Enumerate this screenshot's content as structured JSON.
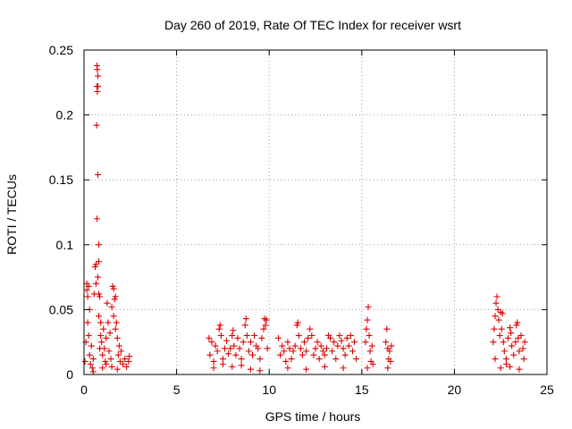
{
  "chart_data": {
    "type": "scatter",
    "title": "Day 260 of 2019, Rate Of TEC Index for receiver wsrt",
    "xlabel": "GPS time / hours",
    "ylabel": "ROTI / TECUs",
    "xlim": [
      0,
      25
    ],
    "ylim": [
      0,
      0.25
    ],
    "xticks": [
      0,
      5,
      10,
      15,
      20,
      25
    ],
    "yticks": [
      0,
      0.05,
      0.1,
      0.15,
      0.2,
      0.25
    ],
    "xtick_labels": [
      "0",
      "5",
      "10",
      "15",
      "20",
      "25"
    ],
    "ytick_labels": [
      "0",
      "0.05",
      "0.1",
      "0.15",
      "0.2",
      "0.25"
    ],
    "grid": true,
    "marker": "+",
    "color": "#e00000",
    "series": [
      {
        "points": [
          [
            0.05,
            0.01
          ],
          [
            0.1,
            0.025
          ],
          [
            0.15,
            0.065
          ],
          [
            0.15,
            0.07
          ],
          [
            0.2,
            0.04
          ],
          [
            0.2,
            0.06
          ],
          [
            0.25,
            0.068
          ],
          [
            0.25,
            0.03
          ],
          [
            0.3,
            0.05
          ],
          [
            0.3,
            0.015
          ],
          [
            0.35,
            0.008
          ],
          [
            0.4,
            0.022
          ],
          [
            0.45,
            0.005
          ],
          [
            0.5,
            0.012
          ],
          [
            0.55,
            0.062
          ],
          [
            0.6,
            0.083
          ],
          [
            0.65,
            0.085
          ],
          [
            0.65,
            0.07
          ],
          [
            0.7,
            0.238
          ],
          [
            0.72,
            0.235
          ],
          [
            0.75,
            0.23
          ],
          [
            0.7,
            0.222
          ],
          [
            0.75,
            0.222
          ],
          [
            0.72,
            0.218
          ],
          [
            0.68,
            0.192
          ],
          [
            0.75,
            0.154
          ],
          [
            0.7,
            0.12
          ],
          [
            0.8,
            0.1
          ],
          [
            0.8,
            0.087
          ],
          [
            0.75,
            0.075
          ],
          [
            0.8,
            0.062
          ],
          [
            0.85,
            0.06
          ],
          [
            0.8,
            0.045
          ],
          [
            0.9,
            0.04
          ],
          [
            0.9,
            0.03
          ],
          [
            0.85,
            0.02
          ],
          [
            0.95,
            0.025
          ],
          [
            1.0,
            0.015
          ],
          [
            1.05,
            0.035
          ],
          [
            1.1,
            0.02
          ],
          [
            1.15,
            0.01
          ],
          [
            1.2,
            0.028
          ],
          [
            1.25,
            0.055
          ],
          [
            1.3,
            0.04
          ],
          [
            1.35,
            0.018
          ],
          [
            1.4,
            0.032
          ],
          [
            1.45,
            0.012
          ],
          [
            1.5,
            0.052
          ],
          [
            1.55,
            0.068
          ],
          [
            1.6,
            0.066
          ],
          [
            1.6,
            0.045
          ],
          [
            1.65,
            0.058
          ],
          [
            1.7,
            0.06
          ],
          [
            1.7,
            0.035
          ],
          [
            1.75,
            0.04
          ],
          [
            1.8,
            0.028
          ],
          [
            1.85,
            0.015
          ],
          [
            1.9,
            0.022
          ],
          [
            1.95,
            0.01
          ],
          [
            2.0,
            0.018
          ],
          [
            2.1,
            0.008
          ],
          [
            2.2,
            0.012
          ],
          [
            2.3,
            0.006
          ],
          [
            2.4,
            0.01
          ],
          [
            2.45,
            0.014
          ],
          [
            1.0,
            0.005
          ],
          [
            1.5,
            0.006
          ],
          [
            0.5,
            0.002
          ],
          [
            1.2,
            0.008
          ],
          [
            1.8,
            0.004
          ],
          [
            6.75,
            0.028
          ],
          [
            6.8,
            0.015
          ],
          [
            6.9,
            0.025
          ],
          [
            7.0,
            0.01
          ],
          [
            7.1,
            0.022
          ],
          [
            7.2,
            0.018
          ],
          [
            7.3,
            0.035
          ],
          [
            7.35,
            0.038
          ],
          [
            7.4,
            0.03
          ],
          [
            7.5,
            0.012
          ],
          [
            7.6,
            0.02
          ],
          [
            7.7,
            0.026
          ],
          [
            7.8,
            0.016
          ],
          [
            7.9,
            0.02
          ],
          [
            8.0,
            0.03
          ],
          [
            8.05,
            0.034
          ],
          [
            8.1,
            0.022
          ],
          [
            8.2,
            0.015
          ],
          [
            8.3,
            0.028
          ],
          [
            8.4,
            0.02
          ],
          [
            8.5,
            0.012
          ],
          [
            8.6,
            0.025
          ],
          [
            8.7,
            0.038
          ],
          [
            8.75,
            0.043
          ],
          [
            8.8,
            0.03
          ],
          [
            8.9,
            0.018
          ],
          [
            9.0,
            0.025
          ],
          [
            9.1,
            0.015
          ],
          [
            9.2,
            0.03
          ],
          [
            9.3,
            0.022
          ],
          [
            9.4,
            0.02
          ],
          [
            9.5,
            0.012
          ],
          [
            9.6,
            0.028
          ],
          [
            9.7,
            0.035
          ],
          [
            9.75,
            0.043
          ],
          [
            9.8,
            0.038
          ],
          [
            9.85,
            0.042
          ],
          [
            9.9,
            0.02
          ],
          [
            7.0,
            0.005
          ],
          [
            8.0,
            0.006
          ],
          [
            9.0,
            0.004
          ],
          [
            7.5,
            0.008
          ],
          [
            8.5,
            0.007
          ],
          [
            9.5,
            0.003
          ],
          [
            10.5,
            0.028
          ],
          [
            10.6,
            0.015
          ],
          [
            10.7,
            0.022
          ],
          [
            10.8,
            0.018
          ],
          [
            10.9,
            0.01
          ],
          [
            11.0,
            0.025
          ],
          [
            11.1,
            0.02
          ],
          [
            11.2,
            0.012
          ],
          [
            11.3,
            0.018
          ],
          [
            11.4,
            0.022
          ],
          [
            11.5,
            0.038
          ],
          [
            11.55,
            0.04
          ],
          [
            11.6,
            0.03
          ],
          [
            11.7,
            0.02
          ],
          [
            11.8,
            0.015
          ],
          [
            11.9,
            0.025
          ],
          [
            12.0,
            0.018
          ],
          [
            12.1,
            0.028
          ],
          [
            12.2,
            0.035
          ],
          [
            12.3,
            0.03
          ],
          [
            12.4,
            0.015
          ],
          [
            12.5,
            0.02
          ],
          [
            12.6,
            0.025
          ],
          [
            12.7,
            0.012
          ],
          [
            12.8,
            0.022
          ],
          [
            12.9,
            0.018
          ],
          [
            13.0,
            0.015
          ],
          [
            13.1,
            0.02
          ],
          [
            13.2,
            0.03
          ],
          [
            13.3,
            0.028
          ],
          [
            13.4,
            0.018
          ],
          [
            13.5,
            0.025
          ],
          [
            13.6,
            0.012
          ],
          [
            13.7,
            0.022
          ],
          [
            13.8,
            0.03
          ],
          [
            13.9,
            0.026
          ],
          [
            14.0,
            0.02
          ],
          [
            14.1,
            0.015
          ],
          [
            14.2,
            0.028
          ],
          [
            14.3,
            0.022
          ],
          [
            14.4,
            0.03
          ],
          [
            14.5,
            0.018
          ],
          [
            14.6,
            0.025
          ],
          [
            14.7,
            0.012
          ],
          [
            11.0,
            0.005
          ],
          [
            12.0,
            0.004
          ],
          [
            13.0,
            0.006
          ],
          [
            14.0,
            0.005
          ],
          [
            15.2,
            0.025
          ],
          [
            15.25,
            0.035
          ],
          [
            15.3,
            0.042
          ],
          [
            15.35,
            0.052
          ],
          [
            15.4,
            0.03
          ],
          [
            15.45,
            0.018
          ],
          [
            15.5,
            0.01
          ],
          [
            15.55,
            0.022
          ],
          [
            15.6,
            0.008
          ],
          [
            15.3,
            0.005
          ],
          [
            16.3,
            0.025
          ],
          [
            16.35,
            0.035
          ],
          [
            16.4,
            0.02
          ],
          [
            16.45,
            0.012
          ],
          [
            16.5,
            0.018
          ],
          [
            16.55,
            0.01
          ],
          [
            16.6,
            0.022
          ],
          [
            16.4,
            0.005
          ],
          [
            22.1,
            0.025
          ],
          [
            22.15,
            0.035
          ],
          [
            22.2,
            0.045
          ],
          [
            22.25,
            0.055
          ],
          [
            22.3,
            0.06
          ],
          [
            22.35,
            0.05
          ],
          [
            22.4,
            0.042
          ],
          [
            22.45,
            0.03
          ],
          [
            22.5,
            0.048
          ],
          [
            22.55,
            0.035
          ],
          [
            22.6,
            0.047
          ],
          [
            22.65,
            0.025
          ],
          [
            22.7,
            0.018
          ],
          [
            22.8,
            0.012
          ],
          [
            22.9,
            0.028
          ],
          [
            23.0,
            0.036
          ],
          [
            23.05,
            0.032
          ],
          [
            23.1,
            0.022
          ],
          [
            23.2,
            0.015
          ],
          [
            23.3,
            0.025
          ],
          [
            23.35,
            0.038
          ],
          [
            23.4,
            0.04
          ],
          [
            23.45,
            0.028
          ],
          [
            23.5,
            0.018
          ],
          [
            23.6,
            0.03
          ],
          [
            23.7,
            0.02
          ],
          [
            23.75,
            0.012
          ],
          [
            23.8,
            0.025
          ],
          [
            22.5,
            0.005
          ],
          [
            23.0,
            0.006
          ],
          [
            23.5,
            0.004
          ],
          [
            22.2,
            0.012
          ],
          [
            22.8,
            0.008
          ]
        ]
      }
    ]
  }
}
